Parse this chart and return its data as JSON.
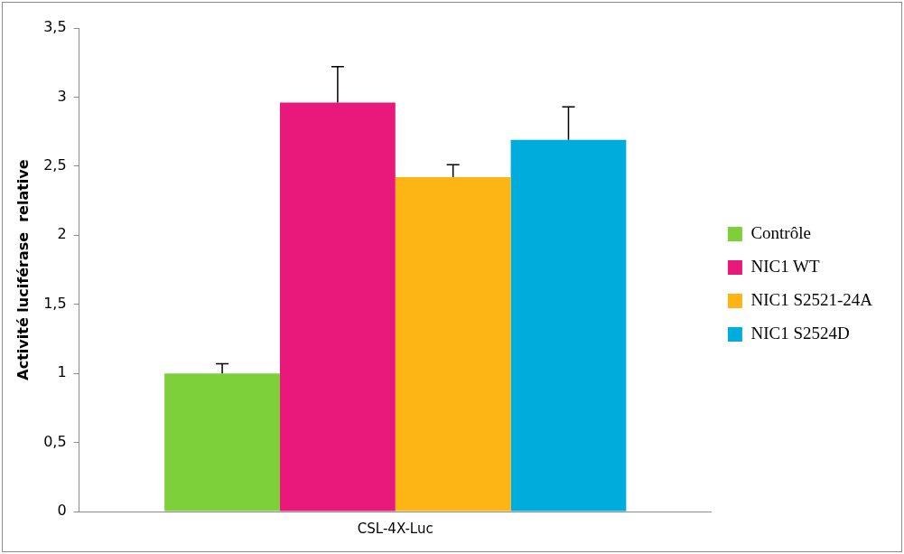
{
  "chart_data": {
    "type": "bar",
    "ylabel": "Activité luciférase  relative",
    "categories": [
      "CSL-4X-Luc"
    ],
    "series": [
      {
        "name": "Contrôle",
        "color": "#7ed03b",
        "values": [
          1.0
        ],
        "errors": [
          [
            1.0,
            1.07
          ]
        ]
      },
      {
        "name": "NIC1 WT",
        "color": "#e8197a",
        "values": [
          2.96
        ],
        "errors": [
          [
            2.96,
            3.22
          ]
        ]
      },
      {
        "name": "NIC1 S2521-24A",
        "color": "#fdb515",
        "values": [
          2.42
        ],
        "errors": [
          [
            2.42,
            2.51
          ]
        ]
      },
      {
        "name": "NIC1 S2524D",
        "color": "#00acdc",
        "values": [
          2.69
        ],
        "errors": [
          [
            2.69,
            2.93
          ]
        ]
      }
    ],
    "ylim": [
      0,
      3.5
    ],
    "yticks": [
      {
        "value": 0,
        "label": "0"
      },
      {
        "value": 0.5,
        "label": "0,5"
      },
      {
        "value": 1,
        "label": "1"
      },
      {
        "value": 1.5,
        "label": "1,5"
      },
      {
        "value": 2,
        "label": "2"
      },
      {
        "value": 2.5,
        "label": "2,5"
      },
      {
        "value": 3,
        "label": "3"
      },
      {
        "value": 3.5,
        "label": "3,5"
      }
    ],
    "grid": false,
    "legend": "right"
  }
}
